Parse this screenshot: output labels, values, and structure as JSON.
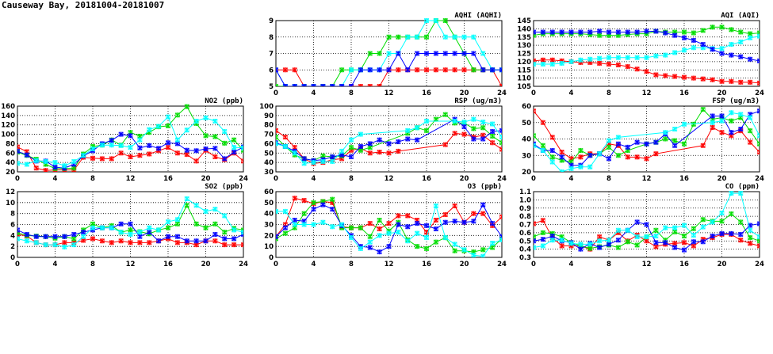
{
  "title": "Causeway Bay, 20181004-20181007",
  "series_colors": [
    "#ff0000",
    "#00dd00",
    "#0000ff",
    "#00ffff"
  ],
  "chart_data": [
    {
      "type": "line",
      "title": "AQHI (AQHI)",
      "ylim": [
        5,
        9
      ],
      "yticks": [
        5,
        6,
        7,
        8,
        9
      ],
      "xlim": [
        0,
        24
      ],
      "xticks": [
        0,
        4,
        8,
        12,
        16,
        20,
        24
      ],
      "grid": true,
      "series": [
        {
          "color": "#ff0000",
          "values": [
            6,
            6,
            6,
            5,
            5,
            5,
            5,
            5,
            5,
            5,
            5,
            5,
            6,
            6,
            6,
            6,
            6,
            6,
            6,
            6,
            6,
            6,
            6,
            6,
            5
          ]
        },
        {
          "color": "#00dd00",
          "values": [
            5,
            5,
            5,
            5,
            5,
            5,
            5,
            6,
            6,
            6,
            7,
            7,
            8,
            8,
            8,
            8,
            8,
            9,
            9,
            8,
            7,
            6,
            6,
            6,
            6
          ]
        },
        {
          "color": "#00ffff",
          "values": [
            6,
            5,
            5,
            5,
            5,
            5,
            5,
            5,
            6,
            6,
            6,
            6,
            7,
            7,
            8,
            8,
            9,
            9,
            8,
            8,
            8,
            8,
            7,
            6,
            6
          ]
        },
        {
          "color": "#0000ff",
          "values": [
            6,
            5,
            5,
            5,
            5,
            5,
            5,
            5,
            5,
            6,
            6,
            6,
            6,
            7,
            6,
            7,
            7,
            7,
            7,
            7,
            7,
            7,
            6,
            6,
            6
          ]
        }
      ]
    },
    {
      "type": "line",
      "title": "AQI (AQI)",
      "ylim": [
        105,
        145
      ],
      "yticks": [
        105,
        110,
        115,
        120,
        125,
        130,
        135,
        140,
        145
      ],
      "xlim": [
        0,
        24
      ],
      "xticks": [
        0,
        4,
        8,
        12,
        16,
        20,
        24
      ],
      "grid": true,
      "series": [
        {
          "color": "#ff0000",
          "values": [
            120.5,
            121,
            121,
            120.5,
            120,
            119.5,
            119.5,
            119,
            118.5,
            118,
            117,
            115.5,
            114,
            112,
            111.5,
            111,
            110.5,
            110,
            109.5,
            109,
            108,
            108,
            107.5,
            107.5,
            107
          ]
        },
        {
          "color": "#00dd00",
          "values": [
            136,
            137,
            137,
            137,
            137,
            137,
            136.5,
            136,
            136,
            136,
            136.5,
            137,
            137,
            138.5,
            138,
            138,
            138,
            137.5,
            139,
            141,
            141,
            139.5,
            138,
            137,
            137.5
          ]
        },
        {
          "color": "#00ffff",
          "values": [
            118.5,
            118.5,
            118.5,
            119,
            120,
            121,
            121.5,
            122,
            122.5,
            122.5,
            122.5,
            122.5,
            122.5,
            123.5,
            124,
            125.5,
            127,
            128.5,
            128.5,
            128,
            128,
            130.5,
            132,
            134.5,
            135.5
          ]
        },
        {
          "color": "#0000ff",
          "values": [
            138,
            138,
            138,
            138,
            138,
            138,
            138,
            138.5,
            138,
            138,
            138,
            138,
            138.5,
            138.5,
            137.5,
            136,
            134.5,
            133,
            130.5,
            127.5,
            125,
            124,
            123,
            121.5,
            120.5
          ]
        }
      ]
    },
    {
      "type": "line",
      "title": "NO2 (ppb)",
      "ylim": [
        20,
        160
      ],
      "yticks": [
        20,
        40,
        60,
        80,
        100,
        120,
        140,
        160
      ],
      "xlim": [
        0,
        24
      ],
      "xticks": [
        0,
        4,
        8,
        12,
        16,
        20,
        24
      ],
      "grid": true,
      "series": [
        {
          "color": "#ff0000",
          "values": [
            73,
            63,
            28,
            23,
            24,
            24,
            24,
            51,
            49,
            48,
            48,
            60,
            52,
            55,
            58,
            65,
            72,
            60,
            57,
            43,
            66,
            52,
            46,
            60,
            43
          ]
        },
        {
          "color": "#00dd00",
          "values": [
            62,
            55,
            47,
            36,
            27,
            27,
            28,
            58,
            74,
            77,
            88,
            77,
            104,
            96,
            104,
            116,
            118,
            141,
            159,
            123,
            97,
            95,
            81,
            88,
            66
          ]
        },
        {
          "color": "#0000ff",
          "values": [
            64,
            56,
            43,
            43,
            30,
            28,
            36,
            54,
            65,
            80,
            87,
            100,
            97,
            71,
            76,
            70,
            82,
            80,
            66,
            65,
            69,
            70,
            48,
            62,
            73
          ]
        },
        {
          "color": "#00ffff",
          "values": [
            38,
            36,
            44,
            42,
            40,
            33,
            42,
            55,
            69,
            77,
            77,
            76,
            72,
            88,
            110,
            117,
            137,
            88,
            109,
            128,
            135,
            128,
            106,
            72,
            71
          ]
        }
      ]
    },
    {
      "type": "line",
      "title": "RSP (ug/m3)",
      "ylim": [
        30,
        100
      ],
      "yticks": [
        30,
        40,
        50,
        60,
        70,
        80,
        90,
        100
      ],
      "xlim": [
        0,
        24
      ],
      "xticks": [
        0,
        4,
        8,
        12,
        16,
        20,
        24
      ],
      "grid": true,
      "series": [
        {
          "color": "#ff0000",
          "values": [
            74,
            67,
            56,
            44,
            39,
            40,
            43,
            44,
            53,
            55,
            50,
            51,
            50,
            52,
            null,
            null,
            null,
            null,
            59,
            71,
            70,
            67,
            69,
            61,
            54
          ]
        },
        {
          "color": "#00dd00",
          "values": [
            67,
            57,
            48,
            44,
            42,
            47,
            46,
            47,
            56,
            53,
            56,
            null,
            null,
            null,
            71,
            77,
            74,
            86,
            91,
            82,
            82,
            76,
            77,
            68,
            61
          ]
        },
        {
          "color": "#0000ff",
          "values": [
            61,
            57,
            52,
            44,
            42,
            43,
            46,
            48,
            46,
            57,
            60,
            64,
            60,
            62,
            65,
            64,
            null,
            null,
            null,
            86,
            78,
            65,
            65,
            73,
            74
          ]
        },
        {
          "color": "#00ffff",
          "values": [
            60,
            57,
            50,
            39,
            40,
            41,
            41,
            52,
            64,
            70,
            null,
            null,
            null,
            null,
            74,
            77,
            84,
            null,
            null,
            84,
            83,
            86,
            83,
            81,
            67
          ]
        }
      ]
    },
    {
      "type": "line",
      "title": "FSP (ug/m3)",
      "ylim": [
        20,
        60
      ],
      "yticks": [
        20,
        30,
        40,
        50,
        60
      ],
      "xlim": [
        0,
        24
      ],
      "xticks": [
        0,
        4,
        8,
        12,
        16,
        20,
        24
      ],
      "grid": true,
      "series": [
        {
          "color": "#ff0000",
          "values": [
            57,
            50,
            41,
            32,
            28,
            29,
            31,
            31,
            37,
            36,
            29,
            29,
            28,
            31,
            null,
            null,
            null,
            null,
            36,
            47,
            44,
            42,
            45,
            38,
            32
          ]
        },
        {
          "color": "#00dd00",
          "values": [
            42,
            36,
            29,
            27,
            26,
            33,
            30,
            31,
            35,
            30,
            33,
            null,
            37,
            38,
            40,
            39,
            37,
            49,
            58,
            52,
            53,
            51,
            53,
            45,
            37
          ]
        },
        {
          "color": "#0000ff",
          "values": [
            37,
            33,
            33,
            29,
            24,
            24,
            30,
            31,
            28,
            37,
            35,
            38,
            37,
            38,
            43,
            36,
            null,
            null,
            null,
            54,
            54,
            44,
            46,
            55,
            57
          ]
        },
        {
          "color": "#00ffff",
          "values": [
            36,
            33,
            26,
            20,
            22,
            23,
            23,
            31,
            39,
            41,
            null,
            null,
            null,
            null,
            44,
            46,
            49,
            null,
            null,
            50,
            51,
            56,
            55,
            53,
            42
          ]
        }
      ]
    },
    {
      "type": "line",
      "title": "SO2 (ppb)",
      "ylim": [
        0,
        12
      ],
      "yticks": [
        0,
        2,
        4,
        6,
        8,
        10,
        12
      ],
      "xlim": [
        0,
        24
      ],
      "xticks": [
        0,
        4,
        8,
        12,
        16,
        20,
        24
      ],
      "grid": true,
      "series": [
        {
          "color": "#ff0000",
          "values": [
            4.2,
            3.9,
            2.7,
            2.3,
            2.3,
            2.7,
            2.7,
            3.1,
            3.4,
            3.0,
            2.7,
            3.0,
            2.7,
            2.7,
            2.7,
            3.0,
            3.4,
            2.7,
            2.7,
            2.3,
            3.0,
            3.0,
            2.3,
            2.3,
            2.3
          ]
        },
        {
          "color": "#00dd00",
          "values": [
            4.5,
            4.0,
            3.9,
            3.8,
            3.5,
            3.8,
            3.4,
            5.0,
            6.1,
            5.4,
            5.8,
            4.6,
            5.0,
            4.7,
            4.3,
            5.0,
            5.4,
            6.1,
            9.5,
            6.1,
            5.4,
            6.1,
            4.6,
            5.3,
            5.0
          ]
        },
        {
          "color": "#0000ff",
          "values": [
            5.0,
            4.2,
            3.8,
            3.8,
            3.8,
            3.8,
            4.2,
            4.6,
            5.0,
            5.4,
            5.4,
            6.1,
            6.1,
            3.8,
            4.6,
            3.0,
            3.8,
            3.8,
            3.0,
            3.0,
            3.0,
            4.2,
            3.4,
            3.4,
            4.2
          ]
        },
        {
          "color": "#00ffff",
          "values": [
            3.4,
            3.0,
            2.7,
            2.3,
            2.3,
            1.9,
            2.3,
            3.8,
            5.4,
            5.4,
            5.4,
            4.6,
            4.2,
            4.6,
            5.4,
            5.0,
            6.5,
            6.9,
            10.7,
            9.5,
            8.4,
            8.8,
            7.6,
            5.0,
            4.6
          ]
        }
      ]
    },
    {
      "type": "line",
      "title": "O3 (ppb)",
      "ylim": [
        0,
        60
      ],
      "yticks": [
        0,
        10,
        20,
        30,
        40,
        50,
        60
      ],
      "xlim": [
        0,
        24
      ],
      "xticks": [
        0,
        4,
        8,
        12,
        16,
        20,
        24
      ],
      "grid": true,
      "series": [
        {
          "color": "#ff0000",
          "values": [
            19,
            30,
            54,
            52,
            49,
            51,
            50,
            28,
            27,
            27,
            31,
            26,
            31,
            38,
            38,
            34,
            23,
            34,
            39,
            47,
            32,
            40,
            40,
            29,
            37
          ]
        },
        {
          "color": "#00dd00",
          "values": [
            17,
            22,
            27,
            40,
            50,
            51,
            53,
            27,
            27,
            27,
            19,
            34,
            24,
            32,
            16,
            10,
            8,
            14,
            18,
            6,
            6,
            5,
            7,
            9,
            17
          ]
        },
        {
          "color": "#0000ff",
          "values": [
            19,
            27,
            34,
            33,
            44,
            48,
            44,
            29,
            20,
            10,
            9,
            5,
            10,
            30,
            28,
            31,
            29,
            26,
            32,
            33,
            32,
            33,
            48,
            31,
            19
          ]
        },
        {
          "color": "#00ffff",
          "values": [
            42,
            42,
            30,
            30,
            30,
            32,
            28,
            30,
            18,
            8,
            14,
            20,
            22,
            23,
            15,
            22,
            18,
            47,
            18,
            12,
            7,
            2,
            1,
            13,
            16
          ]
        }
      ]
    },
    {
      "type": "line",
      "title": "CO (ppm)",
      "ylim": [
        0.3,
        1.1
      ],
      "yticks": [
        0.3,
        0.4,
        0.5,
        0.6,
        0.7,
        0.8,
        0.9,
        1.0,
        1.1
      ],
      "xlim": [
        0,
        24
      ],
      "xticks": [
        0,
        4,
        8,
        12,
        16,
        20,
        24
      ],
      "grid": true,
      "series": [
        {
          "color": "#ff0000",
          "values": [
            0.71,
            0.75,
            0.54,
            0.44,
            0.44,
            0.44,
            0.4,
            0.55,
            0.51,
            0.6,
            0.5,
            0.57,
            0.5,
            0.43,
            0.46,
            0.47,
            0.48,
            0.44,
            0.52,
            0.54,
            0.58,
            0.58,
            0.51,
            0.47,
            0.44
          ]
        },
        {
          "color": "#00dd00",
          "values": [
            0.55,
            0.6,
            0.59,
            0.55,
            0.48,
            0.44,
            0.41,
            0.43,
            0.45,
            0.42,
            0.49,
            0.45,
            0.55,
            0.63,
            0.51,
            0.61,
            0.56,
            0.65,
            0.76,
            0.74,
            0.74,
            0.83,
            0.73,
            0.54,
            0.5
          ]
        },
        {
          "color": "#0000ff",
          "values": [
            0.5,
            0.52,
            0.56,
            0.5,
            0.48,
            0.4,
            0.47,
            0.42,
            0.46,
            0.51,
            0.63,
            0.73,
            0.7,
            0.48,
            0.48,
            0.42,
            0.39,
            0.49,
            0.49,
            0.56,
            0.59,
            0.59,
            0.58,
            0.69,
            0.71
          ]
        },
        {
          "color": "#00ffff",
          "values": [
            0.42,
            0.44,
            0.51,
            0.51,
            0.47,
            0.46,
            0.46,
            0.5,
            0.51,
            0.63,
            0.63,
            0.55,
            0.55,
            0.56,
            0.66,
            0.66,
            0.69,
            0.57,
            0.67,
            0.73,
            0.84,
            1.08,
            1.08,
            0.63,
            0.55
          ]
        }
      ]
    }
  ]
}
